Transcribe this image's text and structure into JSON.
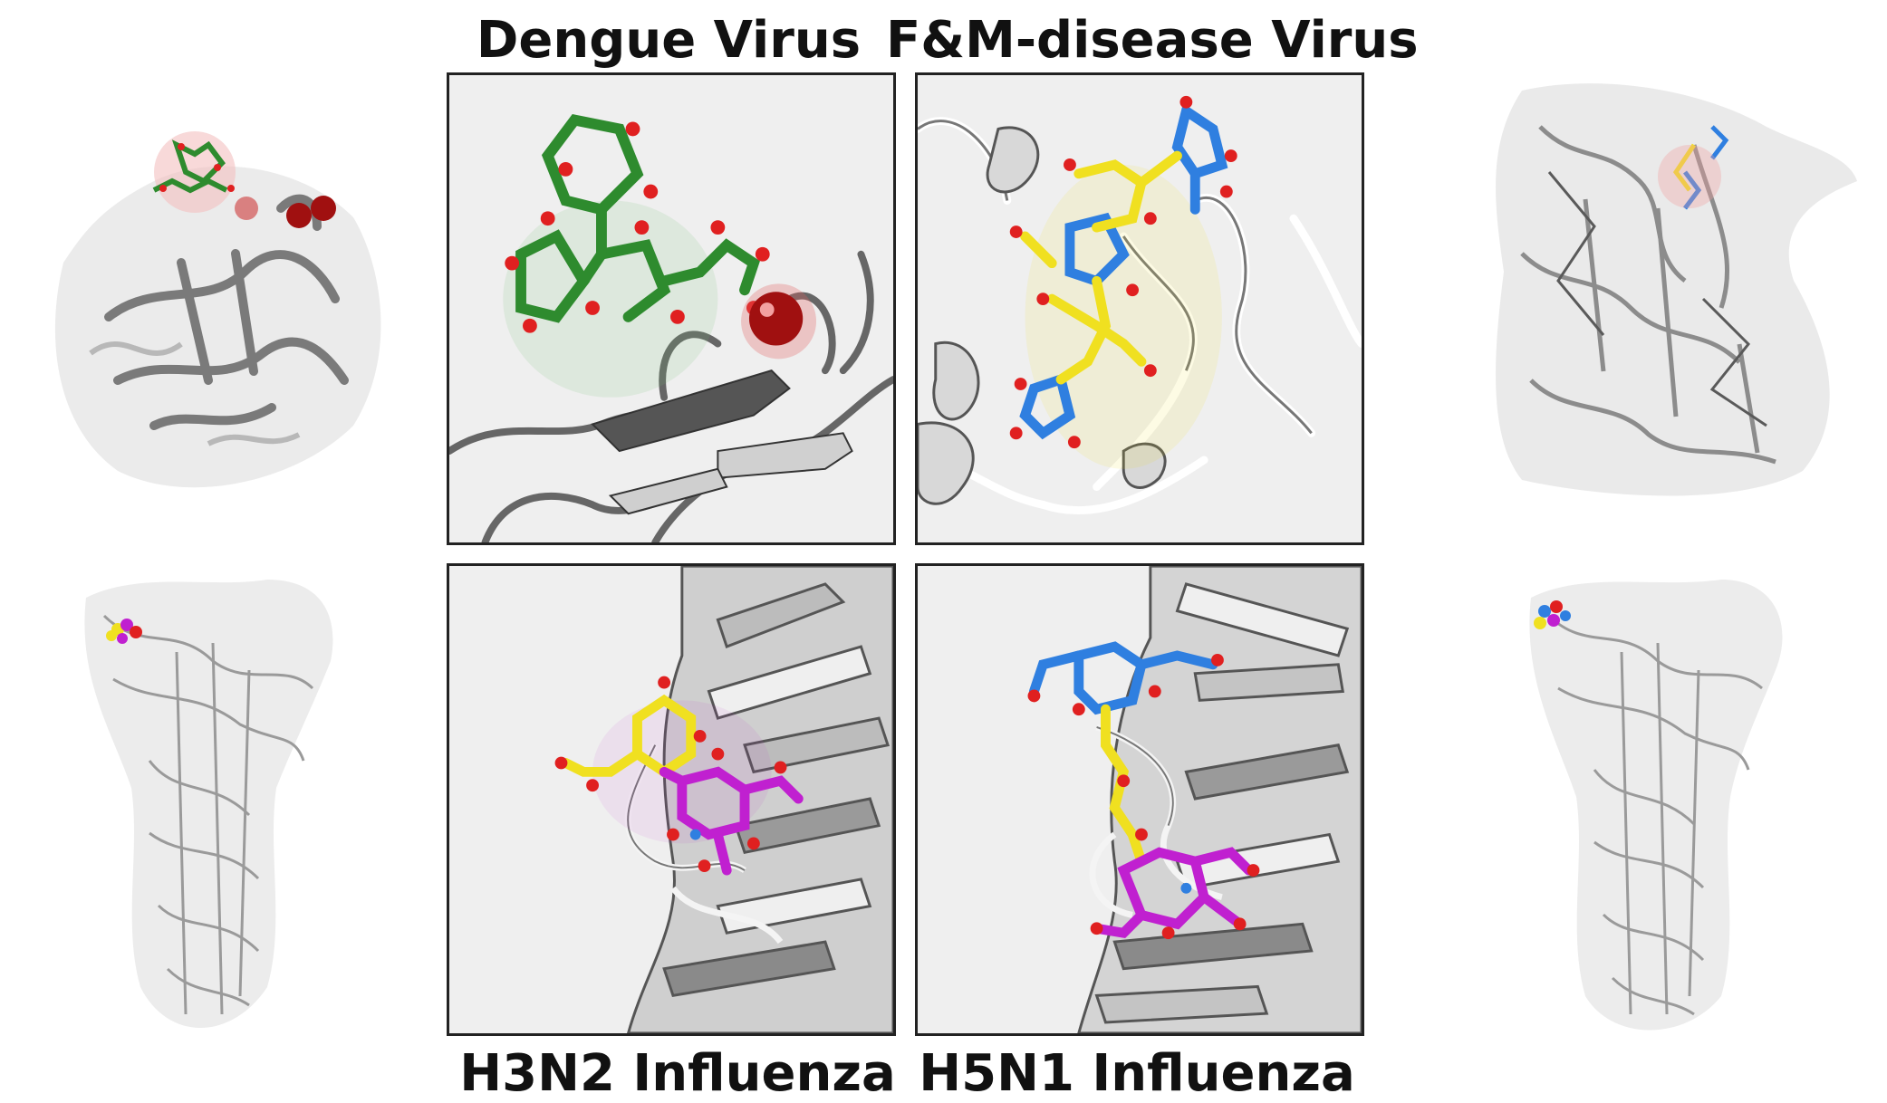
{
  "titles": {
    "top_left": "Dengue Virus",
    "top_right": "F&M-disease Virus",
    "bottom_left": "H3N2 Influenza",
    "bottom_right": "H5N1 Influenza"
  },
  "colors": {
    "dengue_ligand": "#2e8b2e",
    "fmdv_ligand_a": "#f0e020",
    "fmdv_ligand_b": "#2f7fe0",
    "h3n2_ligand_a": "#f0e020",
    "h3n2_ligand_b": "#c020d0",
    "h5n1_ligand_a": "#2f7fe0",
    "h5n1_ligand_b": "#f0e020",
    "h5n1_ligand_c": "#c020d0",
    "oxygen": "#e02020",
    "protein": "#8a8a8a"
  }
}
